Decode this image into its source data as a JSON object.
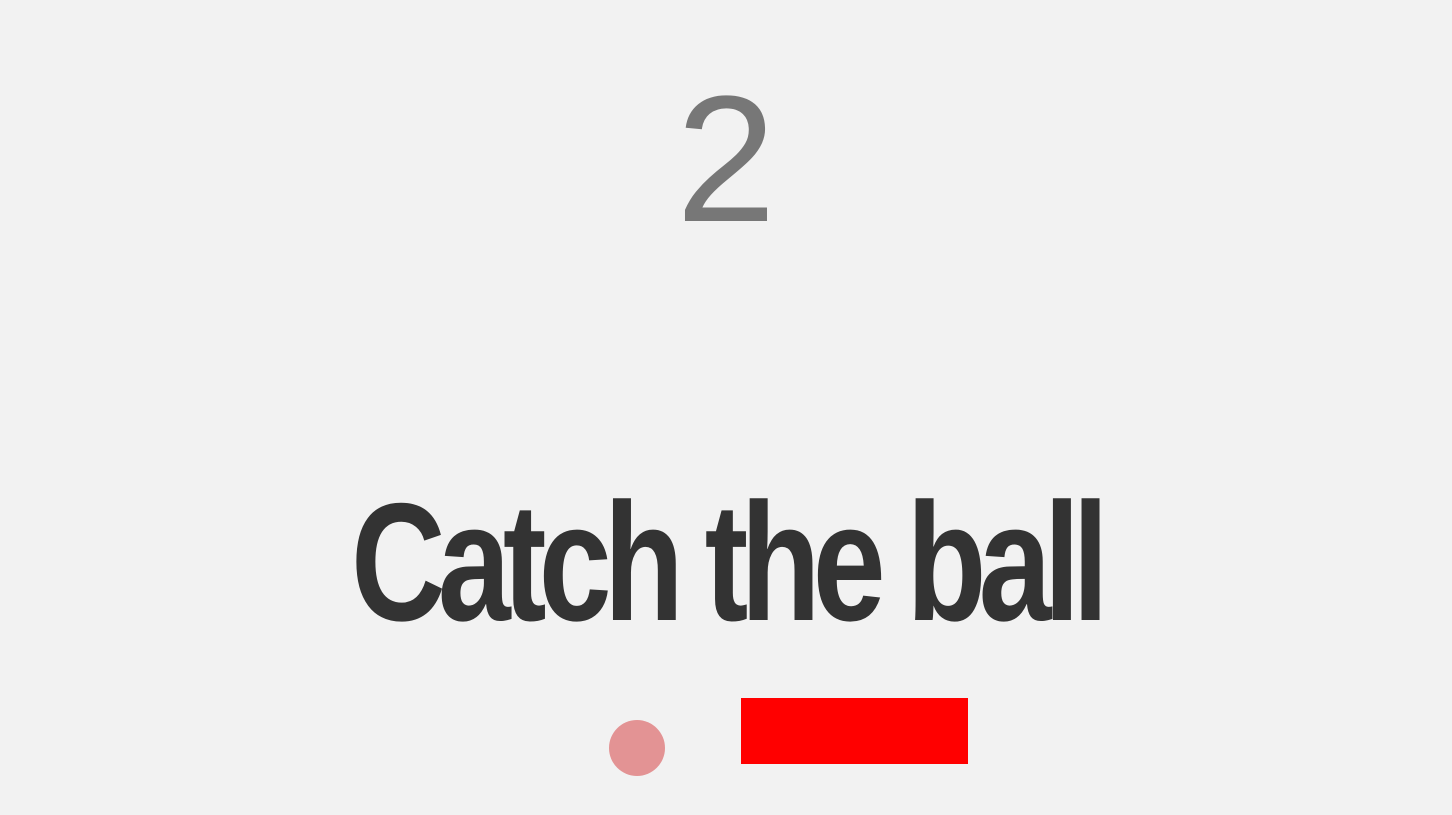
{
  "game": {
    "score": "2",
    "title": "Catch the ball"
  },
  "colors": {
    "background": "#f2f2f2",
    "score_text": "#777777",
    "title_text": "#333333",
    "ball": "#e39394",
    "paddle": "#ff0000"
  }
}
